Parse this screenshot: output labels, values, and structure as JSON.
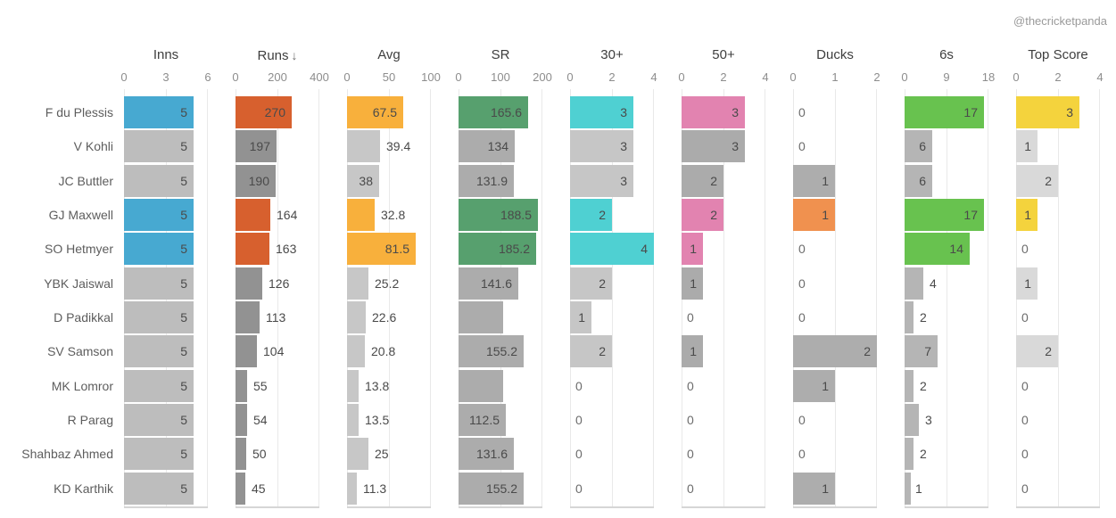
{
  "watermark": "@thecricketpanda",
  "chart_data": {
    "type": "bar",
    "orientation": "horizontal",
    "grid": "vertical-light-gray",
    "sorted_by": "Runs",
    "sort_indicator": "↓",
    "players": [
      "F du Plessis",
      "V Kohli",
      "JC Buttler",
      "GJ Maxwell",
      "SO Hetmyer",
      "YBK Jaiswal",
      "D Padikkal",
      "SV Samson",
      "MK Lomror",
      "R Parag",
      "Shahbaz Ahmed",
      "KD Karthik"
    ],
    "columns": [
      {
        "label": "Inns",
        "sort": false,
        "ticks": [
          "0",
          "3",
          "6"
        ],
        "max": 6,
        "accent": "#47A9D1",
        "gray": "#BDBDBD",
        "cells": [
          {
            "v": 5,
            "t": "5",
            "hl": true,
            "pos": "in"
          },
          {
            "v": 5,
            "t": "5",
            "hl": false,
            "pos": "in"
          },
          {
            "v": 5,
            "t": "5",
            "hl": false,
            "pos": "in"
          },
          {
            "v": 5,
            "t": "5",
            "hl": true,
            "pos": "in"
          },
          {
            "v": 5,
            "t": "5",
            "hl": true,
            "pos": "in"
          },
          {
            "v": 5,
            "t": "5",
            "hl": false,
            "pos": "in"
          },
          {
            "v": 5,
            "t": "5",
            "hl": false,
            "pos": "in"
          },
          {
            "v": 5,
            "t": "5",
            "hl": false,
            "pos": "in"
          },
          {
            "v": 5,
            "t": "5",
            "hl": false,
            "pos": "in"
          },
          {
            "v": 5,
            "t": "5",
            "hl": false,
            "pos": "in"
          },
          {
            "v": 5,
            "t": "5",
            "hl": false,
            "pos": "in"
          },
          {
            "v": 5,
            "t": "5",
            "hl": false,
            "pos": "in"
          }
        ]
      },
      {
        "label": "Runs",
        "sort": true,
        "ticks": [
          "0",
          "200",
          "400"
        ],
        "max": 400,
        "accent": "#D7602E",
        "gray": "#929292",
        "cells": [
          {
            "v": 270,
            "t": "270",
            "hl": true,
            "pos": "in"
          },
          {
            "v": 197,
            "t": "197",
            "hl": false,
            "pos": "in"
          },
          {
            "v": 190,
            "t": "190",
            "hl": false,
            "pos": "in"
          },
          {
            "v": 164,
            "t": "164",
            "hl": true,
            "pos": "out"
          },
          {
            "v": 163,
            "t": "163",
            "hl": true,
            "pos": "out"
          },
          {
            "v": 126,
            "t": "126",
            "hl": false,
            "pos": "out"
          },
          {
            "v": 113,
            "t": "113",
            "hl": false,
            "pos": "out"
          },
          {
            "v": 104,
            "t": "104",
            "hl": false,
            "pos": "out"
          },
          {
            "v": 55,
            "t": "55",
            "hl": false,
            "pos": "out"
          },
          {
            "v": 54,
            "t": "54",
            "hl": false,
            "pos": "out"
          },
          {
            "v": 50,
            "t": "50",
            "hl": false,
            "pos": "out"
          },
          {
            "v": 45,
            "t": "45",
            "hl": false,
            "pos": "out"
          }
        ]
      },
      {
        "label": "Avg",
        "sort": false,
        "ticks": [
          "0",
          "50",
          "100"
        ],
        "max": 100,
        "accent": "#F8B03C",
        "gray": "#C7C7C7",
        "cells": [
          {
            "v": 67.5,
            "t": "67.5",
            "hl": true,
            "pos": "in"
          },
          {
            "v": 39.4,
            "t": "39.4",
            "hl": false,
            "pos": "out"
          },
          {
            "v": 38,
            "t": "38",
            "hl": false,
            "pos": "in"
          },
          {
            "v": 32.8,
            "t": "32.8",
            "hl": true,
            "pos": "out"
          },
          {
            "v": 81.5,
            "t": "81.5",
            "hl": true,
            "pos": "in"
          },
          {
            "v": 25.2,
            "t": "25.2",
            "hl": false,
            "pos": "out"
          },
          {
            "v": 22.6,
            "t": "22.6",
            "hl": false,
            "pos": "out"
          },
          {
            "v": 20.8,
            "t": "20.8",
            "hl": false,
            "pos": "out"
          },
          {
            "v": 13.8,
            "t": "13.8",
            "hl": false,
            "pos": "out"
          },
          {
            "v": 13.5,
            "t": "13.5",
            "hl": false,
            "pos": "out"
          },
          {
            "v": 25,
            "t": "25",
            "hl": false,
            "pos": "out"
          },
          {
            "v": 11.3,
            "t": "11.3",
            "hl": false,
            "pos": "out"
          }
        ]
      },
      {
        "label": "SR",
        "sort": false,
        "ticks": [
          "0",
          "100",
          "200"
        ],
        "max": 200,
        "accent": "#57A06E",
        "gray": "#ACACAC",
        "cells": [
          {
            "v": 165.6,
            "t": "165.6",
            "hl": true,
            "pos": "in"
          },
          {
            "v": 134,
            "t": "134",
            "hl": false,
            "pos": "in"
          },
          {
            "v": 131.9,
            "t": "131.9",
            "hl": false,
            "pos": "in"
          },
          {
            "v": 188.5,
            "t": "188.5",
            "hl": true,
            "pos": "in"
          },
          {
            "v": 185.2,
            "t": "185.2",
            "hl": true,
            "pos": "in"
          },
          {
            "v": 141.6,
            "t": "141.6",
            "hl": false,
            "pos": "in"
          },
          {
            "v": 107,
            "t": "",
            "hl": false,
            "pos": "in"
          },
          {
            "v": 155.2,
            "t": "155.2",
            "hl": false,
            "pos": "in"
          },
          {
            "v": 107,
            "t": "",
            "hl": false,
            "pos": "in"
          },
          {
            "v": 112.5,
            "t": "112.5",
            "hl": false,
            "pos": "in"
          },
          {
            "v": 131.6,
            "t": "131.6",
            "hl": false,
            "pos": "in"
          },
          {
            "v": 155.2,
            "t": "155.2",
            "hl": false,
            "pos": "in"
          }
        ]
      },
      {
        "label": "30+",
        "sort": false,
        "ticks": [
          "0",
          "2",
          "4"
        ],
        "max": 4,
        "accent": "#4FD0D2",
        "gray": "#C6C6C6",
        "cells": [
          {
            "v": 3,
            "t": "3",
            "hl": true,
            "pos": "in"
          },
          {
            "v": 3,
            "t": "3",
            "hl": false,
            "pos": "in"
          },
          {
            "v": 3,
            "t": "3",
            "hl": false,
            "pos": "in"
          },
          {
            "v": 2,
            "t": "2",
            "hl": true,
            "pos": "in"
          },
          {
            "v": 4,
            "t": "4",
            "hl": true,
            "pos": "in"
          },
          {
            "v": 2,
            "t": "2",
            "hl": false,
            "pos": "in"
          },
          {
            "v": 1,
            "t": "1",
            "hl": false,
            "pos": "in"
          },
          {
            "v": 2,
            "t": "2",
            "hl": false,
            "pos": "in"
          },
          {
            "v": 0,
            "t": "0",
            "hl": false,
            "pos": "zero"
          },
          {
            "v": 0,
            "t": "0",
            "hl": false,
            "pos": "zero"
          },
          {
            "v": 0,
            "t": "0",
            "hl": false,
            "pos": "zero"
          },
          {
            "v": 0,
            "t": "0",
            "hl": false,
            "pos": "zero"
          }
        ]
      },
      {
        "label": "50+",
        "sort": false,
        "ticks": [
          "0",
          "2",
          "4"
        ],
        "max": 4,
        "accent": "#E283B0",
        "gray": "#ABABAB",
        "cells": [
          {
            "v": 3,
            "t": "3",
            "hl": true,
            "pos": "in"
          },
          {
            "v": 3,
            "t": "3",
            "hl": false,
            "pos": "in"
          },
          {
            "v": 2,
            "t": "2",
            "hl": false,
            "pos": "in"
          },
          {
            "v": 2,
            "t": "2",
            "hl": true,
            "pos": "in"
          },
          {
            "v": 1,
            "t": "1",
            "hl": true,
            "pos": "in"
          },
          {
            "v": 1,
            "t": "1",
            "hl": false,
            "pos": "in"
          },
          {
            "v": 0,
            "t": "0",
            "hl": false,
            "pos": "zero"
          },
          {
            "v": 1,
            "t": "1",
            "hl": false,
            "pos": "in"
          },
          {
            "v": 0,
            "t": "0",
            "hl": false,
            "pos": "zero"
          },
          {
            "v": 0,
            "t": "0",
            "hl": false,
            "pos": "zero"
          },
          {
            "v": 0,
            "t": "0",
            "hl": false,
            "pos": "zero"
          },
          {
            "v": 0,
            "t": "0",
            "hl": false,
            "pos": "zero"
          }
        ]
      },
      {
        "label": "Ducks",
        "sort": false,
        "ticks": [
          "0",
          "1",
          "2"
        ],
        "max": 2,
        "accent": "#F0914F",
        "gray": "#ADADAD",
        "cells": [
          {
            "v": 0,
            "t": "0",
            "hl": false,
            "pos": "zero"
          },
          {
            "v": 0,
            "t": "0",
            "hl": false,
            "pos": "zero"
          },
          {
            "v": 1,
            "t": "1",
            "hl": false,
            "pos": "in"
          },
          {
            "v": 1,
            "t": "1",
            "hl": true,
            "pos": "in"
          },
          {
            "v": 0,
            "t": "0",
            "hl": false,
            "pos": "zero"
          },
          {
            "v": 0,
            "t": "0",
            "hl": false,
            "pos": "zero"
          },
          {
            "v": 0,
            "t": "0",
            "hl": false,
            "pos": "zero"
          },
          {
            "v": 2,
            "t": "2",
            "hl": false,
            "pos": "in"
          },
          {
            "v": 1,
            "t": "1",
            "hl": false,
            "pos": "in"
          },
          {
            "v": 0,
            "t": "0",
            "hl": false,
            "pos": "zero"
          },
          {
            "v": 0,
            "t": "0",
            "hl": false,
            "pos": "zero"
          },
          {
            "v": 1,
            "t": "1",
            "hl": false,
            "pos": "in"
          }
        ]
      },
      {
        "label": "6s",
        "sort": false,
        "ticks": [
          "0",
          "9",
          "18"
        ],
        "max": 18,
        "accent": "#68C24F",
        "gray": "#B5B5B5",
        "cells": [
          {
            "v": 17,
            "t": "17",
            "hl": true,
            "pos": "in"
          },
          {
            "v": 6,
            "t": "6",
            "hl": false,
            "pos": "in"
          },
          {
            "v": 6,
            "t": "6",
            "hl": false,
            "pos": "in"
          },
          {
            "v": 17,
            "t": "17",
            "hl": true,
            "pos": "in"
          },
          {
            "v": 14,
            "t": "14",
            "hl": true,
            "pos": "in"
          },
          {
            "v": 4,
            "t": "4",
            "hl": false,
            "pos": "out"
          },
          {
            "v": 2,
            "t": "2",
            "hl": false,
            "pos": "out"
          },
          {
            "v": 7,
            "t": "7",
            "hl": false,
            "pos": "in"
          },
          {
            "v": 2,
            "t": "2",
            "hl": false,
            "pos": "out"
          },
          {
            "v": 3,
            "t": "3",
            "hl": false,
            "pos": "out"
          },
          {
            "v": 2,
            "t": "2",
            "hl": false,
            "pos": "out"
          },
          {
            "v": 1,
            "t": "1",
            "hl": false,
            "pos": "out"
          }
        ]
      },
      {
        "label": "Top Score",
        "sort": false,
        "ticks": [
          "0",
          "2",
          "4"
        ],
        "max": 4,
        "accent": "#F4D33D",
        "gray": "#D9D9D9",
        "cells": [
          {
            "v": 3,
            "t": "3",
            "hl": true,
            "pos": "in"
          },
          {
            "v": 1,
            "t": "1",
            "hl": false,
            "pos": "in"
          },
          {
            "v": 2,
            "t": "2",
            "hl": false,
            "pos": "in"
          },
          {
            "v": 1,
            "t": "1",
            "hl": true,
            "pos": "in"
          },
          {
            "v": 0,
            "t": "0",
            "hl": false,
            "pos": "zero"
          },
          {
            "v": 1,
            "t": "1",
            "hl": false,
            "pos": "in"
          },
          {
            "v": 0,
            "t": "0",
            "hl": false,
            "pos": "zero"
          },
          {
            "v": 2,
            "t": "2",
            "hl": false,
            "pos": "in"
          },
          {
            "v": 0,
            "t": "0",
            "hl": false,
            "pos": "zero"
          },
          {
            "v": 0,
            "t": "0",
            "hl": false,
            "pos": "zero"
          },
          {
            "v": 0,
            "t": "0",
            "hl": false,
            "pos": "zero"
          },
          {
            "v": 0,
            "t": "0",
            "hl": false,
            "pos": "zero"
          }
        ]
      }
    ]
  }
}
